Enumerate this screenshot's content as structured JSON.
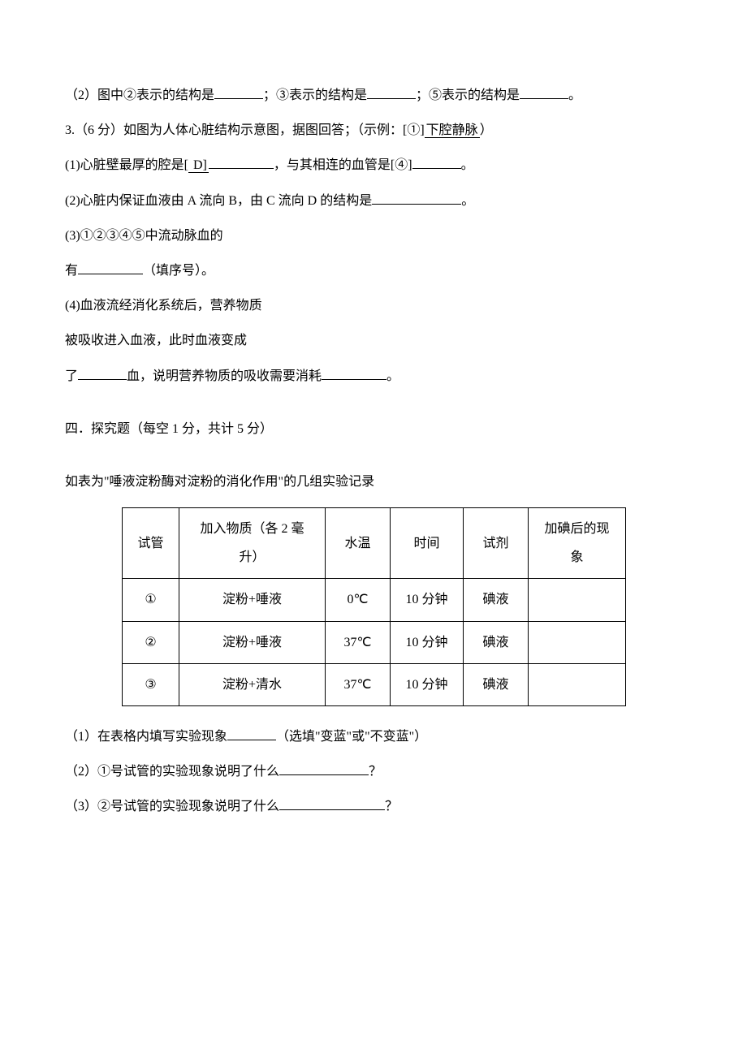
{
  "q2": {
    "text_a": "（2）图中②表示的结构是",
    "text_b": "；③表示的结构是",
    "text_c": "；⑤表示的结构是",
    "text_d": "。"
  },
  "q3": {
    "header": "3.（6 分）如图为人体心脏结构示意图，据图回答；（示例：[①]",
    "example": "下腔静脉",
    "header_end": "）",
    "p1_a": "(1)心脏壁最厚的腔是[",
    "p1_d": " D]",
    "p1_b": "，与其相连的血管是[④]",
    "p1_c": "。",
    "p2_a": "(2)心脏内保证血液由 A 流向 B，由 C 流向 D 的结构是",
    "p2_b": "。",
    "p3_a": "(3)①②③④⑤中流动脉血的",
    "p3_b": "有",
    "p3_c": "（填序号）。",
    "p4_a": "(4)血液流经消化系统后，营养物质",
    "p4_b": "被吸收进入血液，此时血液变成",
    "p4_c": "了",
    "p4_d": "血，说明营养物质的吸收需要消耗",
    "p4_e": "。"
  },
  "section4": {
    "title": "四．探究题（每空 1 分，共计 5 分）",
    "intro": "如表为\"唾液淀粉酶对淀粉的消化作用\"的几组实验记录"
  },
  "table": {
    "headers": [
      "试管",
      "加入物质（各 2 毫升）",
      "水温",
      "时间",
      "试剂",
      "加碘后的现象"
    ],
    "rows": [
      [
        "①",
        "淀粉+唾液",
        "0℃",
        "10 分钟",
        "碘液",
        ""
      ],
      [
        "②",
        "淀粉+唾液",
        "37℃",
        "10 分钟",
        "碘液",
        ""
      ],
      [
        "③",
        "淀粉+清水",
        "37℃",
        "10 分钟",
        "碘液",
        ""
      ]
    ]
  },
  "tq1": {
    "a": "（1）在表格内填写实验现象",
    "b": "（选填\"变蓝\"或\"不变蓝\"）"
  },
  "tq2": {
    "a": "（2）①号试管的实验现象说明了什么",
    "b": "？"
  },
  "tq3": {
    "a": "（3）②号试管的实验现象说明了什么",
    "b": "？"
  }
}
